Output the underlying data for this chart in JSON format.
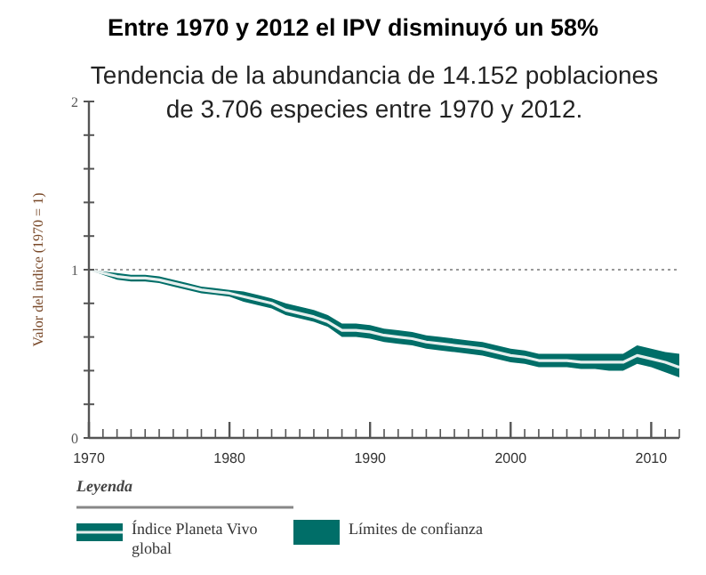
{
  "chart_data": {
    "type": "line",
    "title": "Entre 1970 y 2012 el IPV disminuyó un 58%",
    "subtitle": "Tendencia de la abundancia de 14.152 poblaciones\nde 3.706 especies entre 1970 y 2012.",
    "ylabel": "Valor del índice (1970 = 1)",
    "legend_title": "Leyenda",
    "legend": "bottom",
    "annotations": [
      "Límites de confianza"
    ],
    "x": [
      1970,
      1971,
      1972,
      1973,
      1974,
      1975,
      1976,
      1977,
      1978,
      1979,
      1980,
      1981,
      1982,
      1983,
      1984,
      1985,
      1986,
      1987,
      1988,
      1989,
      1990,
      1991,
      1992,
      1993,
      1994,
      1995,
      1996,
      1997,
      1998,
      1999,
      2000,
      2001,
      2002,
      2003,
      2004,
      2005,
      2006,
      2007,
      2008,
      2009,
      2010,
      2011,
      2012
    ],
    "xlim": [
      1970,
      2012
    ],
    "xticks": [
      1970,
      {
        "value": 1971,
        "label": null
      },
      {
        "value": 1972,
        "label": null
      },
      {
        "value": 1973,
        "label": null
      },
      {
        "value": 1974,
        "label": null
      },
      {
        "value": 1975,
        "label": null
      },
      {
        "value": 1976,
        "label": null
      },
      {
        "value": 1977,
        "label": null
      },
      {
        "value": 1978,
        "label": null
      },
      {
        "value": 1979,
        "label": null
      },
      1980,
      {
        "value": 1981,
        "label": null
      },
      {
        "value": 1982,
        "label": null
      },
      {
        "value": 1983,
        "label": null
      },
      {
        "value": 1984,
        "label": null
      },
      {
        "value": 1985,
        "label": null
      },
      {
        "value": 1986,
        "label": null
      },
      {
        "value": 1987,
        "label": null
      },
      {
        "value": 1988,
        "label": null
      },
      {
        "value": 1989,
        "label": null
      },
      1990,
      {
        "value": 1991,
        "label": null
      },
      {
        "value": 1992,
        "label": null
      },
      {
        "value": 1993,
        "label": null
      },
      {
        "value": 1994,
        "label": null
      },
      {
        "value": 1995,
        "label": null
      },
      {
        "value": 1996,
        "label": null
      },
      {
        "value": 1997,
        "label": null
      },
      {
        "value": 1998,
        "label": null
      },
      {
        "value": 1999,
        "label": null
      },
      2000,
      {
        "value": 2001,
        "label": null
      },
      {
        "value": 2002,
        "label": null
      },
      {
        "value": 2003,
        "label": null
      },
      {
        "value": 2004,
        "label": null
      },
      {
        "value": 2005,
        "label": null
      },
      {
        "value": 2006,
        "label": null
      },
      {
        "value": 2007,
        "label": null
      },
      {
        "value": 2008,
        "label": null
      },
      {
        "value": 2009,
        "label": null
      },
      2010,
      {
        "value": 2011,
        "label": null
      },
      {
        "value": 2012,
        "label": null
      }
    ],
    "ylim": [
      0,
      2
    ],
    "yticks": [
      0,
      {
        "value": 0.2,
        "label": null
      },
      {
        "value": 0.4,
        "label": null
      },
      {
        "value": 0.6,
        "label": null
      },
      {
        "value": 0.8,
        "label": null
      },
      1,
      {
        "value": 1.2,
        "label": null
      },
      {
        "value": 1.4,
        "label": null
      },
      {
        "value": 1.6,
        "label": null
      },
      {
        "value": 1.8,
        "label": null
      },
      2
    ],
    "ref_lines": [
      {
        "axis": "y",
        "value": 1,
        "color": "#999999",
        "line_style": "dotted"
      }
    ],
    "series": [
      {
        "name": "Índice Planeta Vivo global",
        "color": "#e6efee",
        "values": [
          1,
          0.98,
          0.96,
          0.95,
          0.95,
          0.94,
          0.92,
          0.9,
          0.88,
          0.87,
          0.86,
          0.84,
          0.82,
          0.8,
          0.76,
          0.74,
          0.72,
          0.69,
          0.64,
          0.64,
          0.63,
          0.61,
          0.6,
          0.59,
          0.57,
          0.56,
          0.55,
          0.54,
          0.53,
          0.51,
          0.49,
          0.48,
          0.46,
          0.46,
          0.46,
          0.45,
          0.45,
          0.45,
          0.45,
          0.49,
          0.47,
          0.45,
          0.42
        ],
        "lower": [
          1,
          0.97,
          0.94,
          0.93,
          0.93,
          0.92,
          0.9,
          0.88,
          0.86,
          0.85,
          0.84,
          0.81,
          0.79,
          0.77,
          0.73,
          0.71,
          0.69,
          0.66,
          0.6,
          0.6,
          0.59,
          0.57,
          0.56,
          0.55,
          0.53,
          0.52,
          0.51,
          0.5,
          0.49,
          0.47,
          0.45,
          0.44,
          0.42,
          0.42,
          0.42,
          0.41,
          0.41,
          0.4,
          0.4,
          0.44,
          0.42,
          0.39,
          0.36
        ],
        "upper": [
          1,
          0.99,
          0.98,
          0.97,
          0.97,
          0.96,
          0.94,
          0.92,
          0.9,
          0.89,
          0.88,
          0.87,
          0.85,
          0.83,
          0.8,
          0.78,
          0.76,
          0.73,
          0.68,
          0.68,
          0.67,
          0.65,
          0.64,
          0.63,
          0.61,
          0.6,
          0.59,
          0.58,
          0.57,
          0.55,
          0.53,
          0.52,
          0.5,
          0.5,
          0.5,
          0.5,
          0.5,
          0.5,
          0.5,
          0.55,
          0.53,
          0.51,
          0.5
        ]
      }
    ]
  }
}
